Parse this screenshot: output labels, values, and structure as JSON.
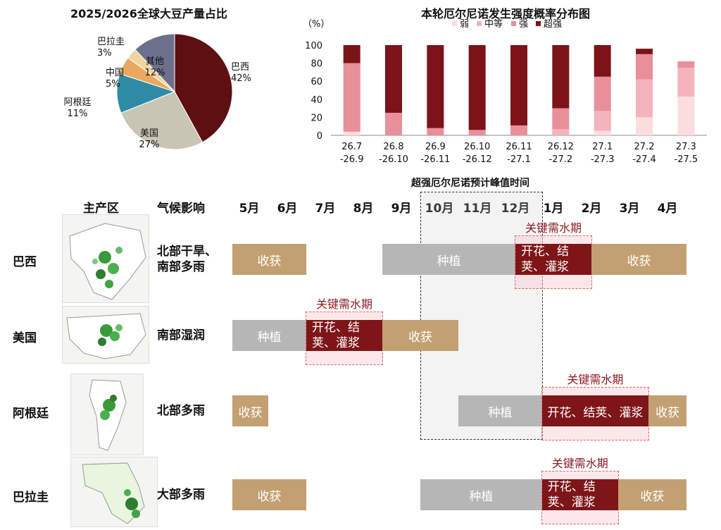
{
  "pie": {
    "title": "2025/2026全球大豆产量占比",
    "slices": [
      {
        "name": "巴西",
        "pct": "42%",
        "value": 42,
        "color": "#5d0f12"
      },
      {
        "name": "美国",
        "pct": "27%",
        "value": 27,
        "color": "#c9c5b5"
      },
      {
        "name": "阿根廷",
        "pct": "11%",
        "value": 11,
        "color": "#2f8aa6"
      },
      {
        "name": "中国",
        "pct": "5%",
        "value": 5,
        "color": "#e9a860"
      },
      {
        "name": "巴拉圭",
        "pct": "3%",
        "value": 3,
        "color": "#f1d49d"
      },
      {
        "name": "其他",
        "pct": "12%",
        "value": 12,
        "color": "#6c708d"
      }
    ]
  },
  "chart_data": {
    "type": "bar",
    "title": "本轮厄尔尼诺发生强度概率分布图",
    "ylabel": "（%）",
    "ylim": [
      0,
      100
    ],
    "yticks": [
      "0",
      "20",
      "40",
      "60",
      "80",
      "100"
    ],
    "legend_position": "top",
    "categories": [
      "26.7\n-26.9",
      "26.8\n-26.10",
      "26.9\n-26.11",
      "26.10\n-26.12",
      "26.11\n-27.1",
      "26.12\n-27.2",
      "27.1\n-27.3",
      "27.2\n-27.4",
      "27.3\n-27.5"
    ],
    "series": [
      {
        "name": "弱",
        "color": "#fbdcdf",
        "values": [
          4,
          0,
          0,
          0,
          0,
          0,
          5,
          20,
          43
        ]
      },
      {
        "name": "中等",
        "color": "#f4b3bd",
        "values": [
          0,
          0,
          0,
          0,
          0,
          7,
          22,
          42,
          32
        ]
      },
      {
        "name": "强",
        "color": "#e98f9a",
        "values": [
          76,
          25,
          8,
          6,
          11,
          23,
          38,
          28,
          7
        ]
      },
      {
        "name": "超强",
        "color": "#7b1318",
        "values": [
          20,
          75,
          92,
          94,
          89,
          70,
          35,
          6,
          0
        ]
      }
    ]
  },
  "timeline": {
    "headers": {
      "region": "主产区",
      "climate": "气候影响"
    },
    "months": [
      "5月",
      "6月",
      "7月",
      "8月",
      "9月",
      "10月",
      "11月",
      "12月",
      "1月",
      "2月",
      "3月",
      "4月"
    ],
    "peak_label": "超强厄尔尼诺预计峰值时间",
    "key_label": "关键需水期",
    "rows": [
      {
        "country": "巴西",
        "climate": "北部干旱、南部多雨",
        "bars": [
          {
            "label": "收获",
            "start": 0,
            "end": 2
          },
          {
            "label": "种植",
            "start": 4,
            "end": 7.5
          },
          {
            "label": "开花、结荚、灌浆",
            "start": 7.5,
            "end": 9.5
          },
          {
            "label": "收获",
            "start": 9.5,
            "end": 12
          }
        ]
      },
      {
        "country": "美国",
        "climate": "南部湿润",
        "bars": [
          {
            "label": "种植",
            "start": 0,
            "end": 2
          },
          {
            "label": "开花、结荚、灌浆",
            "start": 2,
            "end": 4
          },
          {
            "label": "收获",
            "start": 4,
            "end": 6
          }
        ]
      },
      {
        "country": "阿根廷",
        "climate": "北部多雨",
        "bars": [
          {
            "label": "收获",
            "start": 0,
            "end": 1
          },
          {
            "label": "种植",
            "start": 6,
            "end": 8.2
          },
          {
            "label": "开花、结荚、灌浆",
            "start": 8.2,
            "end": 11
          },
          {
            "label": "收获",
            "start": 11,
            "end": 12
          }
        ]
      },
      {
        "country": "巴拉圭",
        "climate": "大部多雨",
        "bars": [
          {
            "label": "收获",
            "start": 0,
            "end": 2
          },
          {
            "label": "种植",
            "start": 5,
            "end": 8.2
          },
          {
            "label": "开花、结荚、灌浆",
            "start": 8.2,
            "end": 10.2
          },
          {
            "label": "收获",
            "start": 10.2,
            "end": 12
          }
        ]
      }
    ]
  }
}
